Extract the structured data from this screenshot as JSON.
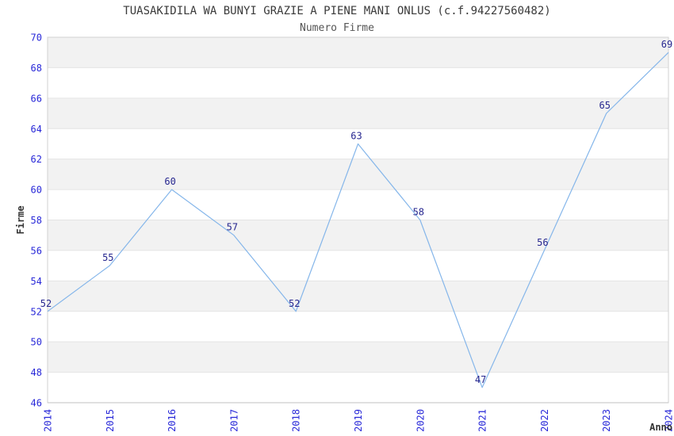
{
  "header": {
    "title": "TUASAKIDILA WA BUNYI GRAZIE A PIENE MANI ONLUS (c.f.94227560482)",
    "subtitle": "Numero Firme"
  },
  "chart_data": {
    "type": "line",
    "title": "Numero Firme",
    "x": [
      2014,
      2015,
      2016,
      2017,
      2018,
      2019,
      2020,
      2021,
      2022,
      2023,
      2024
    ],
    "values": [
      52,
      55,
      60,
      57,
      52,
      63,
      58,
      47,
      56,
      65,
      69
    ],
    "xlabel": "Anno",
    "ylabel": "Firme",
    "ylim": [
      46,
      70
    ],
    "ytick_step": 2,
    "grid": "horizontal-gridlines-with-alternating-bands",
    "legend_position": "none",
    "point_labels_visible": true
  },
  "colors": {
    "title_text": "#3a3a3a",
    "axis_label_text": "#333333",
    "tick_label": "#2828d8",
    "point_label": "#26268f",
    "line": "#85b6ea",
    "band": "#f2f2f2",
    "gridline": "#e4e4e4",
    "border": "#d2d2d2",
    "axis_line": "#c2c2c2",
    "background": "#ffffff"
  }
}
